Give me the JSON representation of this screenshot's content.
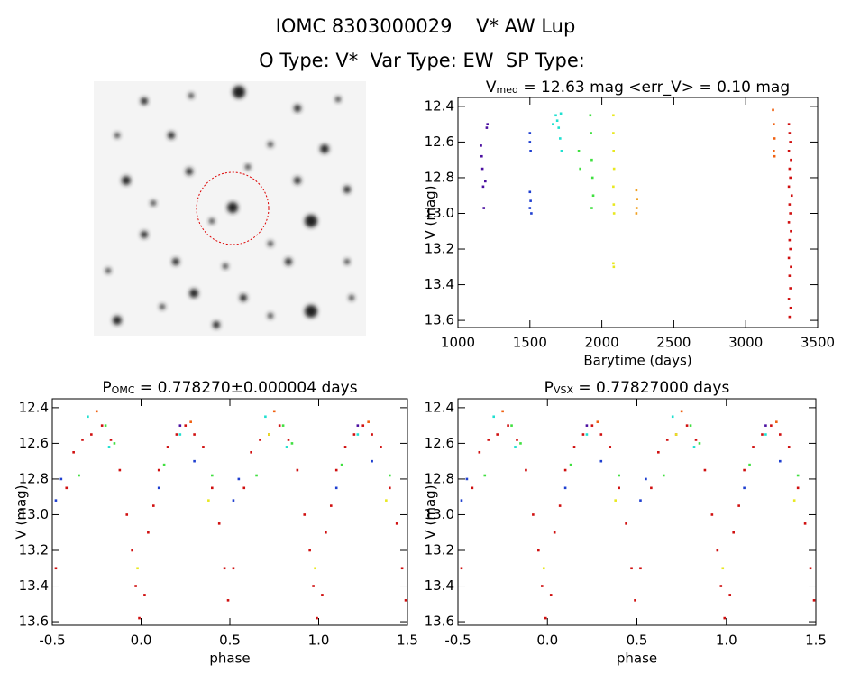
{
  "title": "IOMC 8303000029    V* AW Lup",
  "subtitle": "O Type: V*  Var Type: EW  SP Type:",
  "chart_data": [
    {
      "type": "scatter",
      "title": [
        "V",
        "med",
        " = 12.63 mag <err_V> = 0.10 mag"
      ],
      "xlabel": "Barytime (days)",
      "ylabel": "V (mag)",
      "xlim": [
        1000,
        3500
      ],
      "ylim": [
        13.64,
        12.35
      ],
      "xticks": [
        1000,
        1500,
        2000,
        2500,
        3000,
        3500
      ],
      "yticks": [
        12.4,
        12.6,
        12.8,
        {
          "value": 13,
          "label": "13.0"
        },
        13.2,
        13.4,
        13.6
      ],
      "series": [
        {
          "color": "#4b0fa0",
          "x": [
            1160,
            1165,
            1170,
            1175,
            1180,
            1190,
            1200,
            1205
          ],
          "values": [
            12.62,
            12.68,
            12.75,
            12.85,
            12.97,
            12.82,
            12.52,
            12.5
          ]
        },
        {
          "color": "#1f3fd0",
          "x": [
            1500,
            1500,
            1505,
            1500,
            1505,
            1500,
            1510
          ],
          "values": [
            12.55,
            12.6,
            12.65,
            12.88,
            12.93,
            12.97,
            13.0
          ]
        },
        {
          "color": "#20e0d0",
          "x": [
            1660,
            1680,
            1690,
            1700,
            1710,
            1720,
            1715
          ],
          "values": [
            12.5,
            12.45,
            12.48,
            12.52,
            12.58,
            12.65,
            12.44
          ]
        },
        {
          "color": "#40e040",
          "x": [
            1840,
            1850,
            1920,
            1925,
            1930,
            1935,
            1940,
            1930
          ],
          "values": [
            12.65,
            12.75,
            12.45,
            12.55,
            12.7,
            12.8,
            12.9,
            12.97
          ]
        },
        {
          "color": "#e8e820",
          "x": [
            2080,
            2080,
            2082,
            2085,
            2080,
            2083,
            2085,
            2080,
            2083
          ],
          "values": [
            12.45,
            12.55,
            12.65,
            12.75,
            12.85,
            12.95,
            13.0,
            13.28,
            13.3
          ]
        },
        {
          "color": "#f0a020",
          "x": [
            2240,
            2245,
            2242,
            2240
          ],
          "values": [
            12.87,
            12.92,
            12.97,
            13.0
          ]
        },
        {
          "color": "#f06010",
          "x": [
            3190,
            3195,
            3200,
            3195,
            3200
          ],
          "values": [
            12.42,
            12.5,
            12.58,
            12.65,
            12.68
          ]
        },
        {
          "color": "#d01010",
          "x": [
            3300,
            3305,
            3310,
            3300,
            3315,
            3305,
            3310,
            3300,
            3320,
            3305,
            3310,
            3300,
            3315,
            3305,
            3310,
            3300,
            3315,
            3305,
            3310,
            3300,
            3312,
            3305
          ],
          "values": [
            12.5,
            12.55,
            12.6,
            12.65,
            12.7,
            12.75,
            12.8,
            12.85,
            12.9,
            12.95,
            13.0,
            13.05,
            13.1,
            13.15,
            13.2,
            13.25,
            13.3,
            13.35,
            13.42,
            13.48,
            13.53,
            13.58
          ]
        }
      ]
    },
    {
      "type": "scatter",
      "title": [
        "P",
        "OMC",
        " = 0.778270±0.000004 days"
      ],
      "xlabel": "phase",
      "ylabel": "V (mag)",
      "xlim": [
        -0.5,
        1.5
      ],
      "ylim": [
        13.62,
        12.35
      ],
      "xticks": [
        -0.5,
        {
          "value": 0,
          "label": "0.0"
        },
        0.5,
        {
          "value": 1,
          "label": "1.0"
        },
        1.5
      ],
      "yticks": [
        12.4,
        12.6,
        12.8,
        {
          "value": 13,
          "label": "13.0"
        },
        13.2,
        13.4,
        13.6
      ],
      "series": [
        {
          "color": "#d01010",
          "x": [
            -0.48,
            -0.42,
            -0.38,
            -0.33,
            -0.28,
            -0.22,
            -0.17,
            -0.12,
            -0.08,
            -0.05,
            -0.03,
            -0.01,
            0.02,
            0.04,
            0.07,
            0.1,
            0.15,
            0.2,
            0.25,
            0.3,
            0.35,
            0.4,
            0.44,
            0.47,
            0.49,
            0.52,
            0.58,
            0.62,
            0.67,
            0.72,
            0.78,
            0.83,
            0.88,
            0.92,
            0.95,
            0.97,
            0.99,
            1.02,
            1.04,
            1.07,
            1.1,
            1.15,
            1.2,
            1.25,
            1.3,
            1.35,
            1.4,
            1.44,
            1.47,
            1.49
          ],
          "values": [
            13.3,
            12.85,
            12.65,
            12.58,
            12.55,
            12.5,
            12.58,
            12.75,
            13.0,
            13.2,
            13.4,
            13.58,
            13.45,
            13.1,
            12.95,
            12.75,
            12.62,
            12.55,
            12.5,
            12.55,
            12.62,
            12.85,
            13.05,
            13.3,
            13.48,
            13.3,
            12.85,
            12.65,
            12.58,
            12.55,
            12.5,
            12.58,
            12.75,
            13.0,
            13.2,
            13.4,
            13.58,
            13.45,
            13.1,
            12.95,
            12.75,
            12.62,
            12.55,
            12.5,
            12.55,
            12.62,
            12.85,
            13.05,
            13.3,
            13.48
          ]
        },
        {
          "color": "#40e040",
          "x": [
            -0.35,
            -0.2,
            -0.15,
            0.13,
            0.4,
            0.65,
            0.8,
            0.85,
            1.13,
            1.4
          ],
          "values": [
            12.78,
            12.5,
            12.6,
            12.72,
            12.78,
            12.78,
            12.5,
            12.6,
            12.72,
            12.78
          ]
        },
        {
          "color": "#20e0d0",
          "x": [
            -0.3,
            -0.18,
            0.22,
            0.7,
            0.82,
            1.22
          ],
          "values": [
            12.45,
            12.62,
            12.55,
            12.45,
            12.62,
            12.55
          ]
        },
        {
          "color": "#1f3fd0",
          "x": [
            -0.48,
            -0.45,
            0.1,
            0.3,
            0.52,
            0.55,
            1.1,
            1.3
          ],
          "values": [
            12.92,
            12.8,
            12.85,
            12.7,
            12.92,
            12.8,
            12.85,
            12.7
          ]
        },
        {
          "color": "#e8e820",
          "x": [
            -0.02,
            0.38,
            0.72,
            0.98,
            1.38
          ],
          "values": [
            13.3,
            12.92,
            12.55,
            13.3,
            12.92
          ]
        },
        {
          "color": "#f06010",
          "x": [
            -0.25,
            0.28,
            0.75,
            1.28
          ],
          "values": [
            12.42,
            12.48,
            12.42,
            12.48
          ]
        },
        {
          "color": "#4b0fa0",
          "x": [
            0.22,
            1.22
          ],
          "values": [
            12.5,
            12.5
          ]
        }
      ]
    },
    {
      "type": "scatter",
      "title": [
        "P",
        "VSX",
        " = 0.77827000 days"
      ],
      "xlabel": "phase",
      "ylabel": "V (mag)",
      "xlim": [
        -0.5,
        1.5
      ],
      "ylim": [
        13.62,
        12.35
      ],
      "xticks": [
        -0.5,
        {
          "value": 0,
          "label": "0.0"
        },
        0.5,
        {
          "value": 1,
          "label": "1.0"
        },
        1.5
      ],
      "yticks": [
        12.4,
        12.6,
        12.8,
        {
          "value": 13,
          "label": "13.0"
        },
        13.2,
        13.4,
        13.6
      ],
      "series": [
        {
          "color": "#d01010",
          "x": [
            -0.48,
            -0.42,
            -0.38,
            -0.33,
            -0.28,
            -0.22,
            -0.17,
            -0.12,
            -0.08,
            -0.05,
            -0.03,
            -0.01,
            0.02,
            0.04,
            0.07,
            0.1,
            0.15,
            0.2,
            0.25,
            0.3,
            0.35,
            0.4,
            0.44,
            0.47,
            0.49,
            0.52,
            0.58,
            0.62,
            0.67,
            0.72,
            0.78,
            0.83,
            0.88,
            0.92,
            0.95,
            0.97,
            0.99,
            1.02,
            1.04,
            1.07,
            1.1,
            1.15,
            1.2,
            1.25,
            1.3,
            1.35,
            1.4,
            1.44,
            1.47,
            1.49
          ],
          "values": [
            13.3,
            12.85,
            12.65,
            12.58,
            12.55,
            12.5,
            12.58,
            12.75,
            13.0,
            13.2,
            13.4,
            13.58,
            13.45,
            13.1,
            12.95,
            12.75,
            12.62,
            12.55,
            12.5,
            12.55,
            12.62,
            12.85,
            13.05,
            13.3,
            13.48,
            13.3,
            12.85,
            12.65,
            12.58,
            12.55,
            12.5,
            12.58,
            12.75,
            13.0,
            13.2,
            13.4,
            13.58,
            13.45,
            13.1,
            12.95,
            12.75,
            12.62,
            12.55,
            12.5,
            12.55,
            12.62,
            12.85,
            13.05,
            13.3,
            13.48
          ]
        },
        {
          "color": "#40e040",
          "x": [
            -0.35,
            -0.2,
            -0.15,
            0.13,
            0.4,
            0.65,
            0.8,
            0.85,
            1.13,
            1.4
          ],
          "values": [
            12.78,
            12.5,
            12.6,
            12.72,
            12.78,
            12.78,
            12.5,
            12.6,
            12.72,
            12.78
          ]
        },
        {
          "color": "#20e0d0",
          "x": [
            -0.3,
            -0.18,
            0.22,
            0.7,
            0.82,
            1.22
          ],
          "values": [
            12.45,
            12.62,
            12.55,
            12.45,
            12.62,
            12.55
          ]
        },
        {
          "color": "#1f3fd0",
          "x": [
            -0.48,
            -0.45,
            0.1,
            0.3,
            0.52,
            0.55,
            1.1,
            1.3
          ],
          "values": [
            12.92,
            12.8,
            12.85,
            12.7,
            12.92,
            12.8,
            12.85,
            12.7
          ]
        },
        {
          "color": "#e8e820",
          "x": [
            -0.02,
            0.38,
            0.72,
            0.98,
            1.38
          ],
          "values": [
            13.3,
            12.92,
            12.55,
            13.3,
            12.92
          ]
        },
        {
          "color": "#f06010",
          "x": [
            -0.25,
            0.28,
            0.75,
            1.28
          ],
          "values": [
            12.42,
            12.48,
            12.42,
            12.48
          ]
        },
        {
          "color": "#4b0fa0",
          "x": [
            0.22,
            1.22
          ],
          "values": [
            12.5,
            12.5
          ]
        }
      ]
    }
  ]
}
